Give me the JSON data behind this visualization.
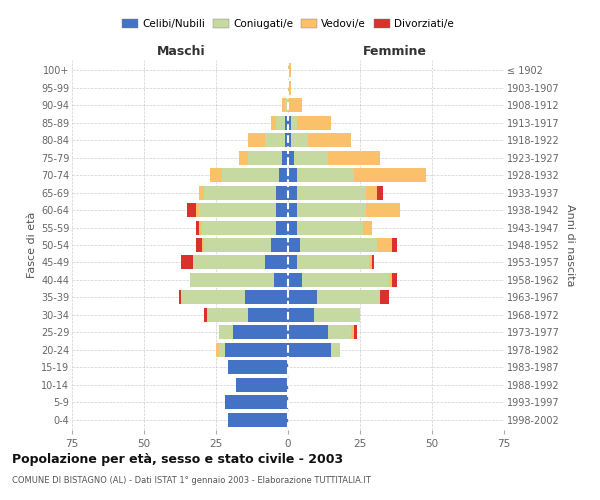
{
  "age_groups": [
    "0-4",
    "5-9",
    "10-14",
    "15-19",
    "20-24",
    "25-29",
    "30-34",
    "35-39",
    "40-44",
    "45-49",
    "50-54",
    "55-59",
    "60-64",
    "65-69",
    "70-74",
    "75-79",
    "80-84",
    "85-89",
    "90-94",
    "95-99",
    "100+"
  ],
  "birth_years": [
    "1998-2002",
    "1993-1997",
    "1988-1992",
    "1983-1987",
    "1978-1982",
    "1973-1977",
    "1968-1972",
    "1963-1967",
    "1958-1962",
    "1953-1957",
    "1948-1952",
    "1943-1947",
    "1938-1942",
    "1933-1937",
    "1928-1932",
    "1923-1927",
    "1918-1922",
    "1913-1917",
    "1908-1912",
    "1903-1907",
    "≤ 1902"
  ],
  "maschi": {
    "celibi": [
      21,
      22,
      18,
      21,
      22,
      19,
      14,
      15,
      5,
      8,
      6,
      4,
      4,
      4,
      3,
      2,
      1,
      1,
      0,
      0,
      0
    ],
    "coniugati": [
      0,
      0,
      0,
      0,
      2,
      5,
      14,
      22,
      29,
      25,
      23,
      26,
      27,
      25,
      20,
      12,
      7,
      3,
      1,
      0,
      0
    ],
    "vedovi": [
      0,
      0,
      0,
      0,
      1,
      0,
      0,
      0,
      0,
      0,
      1,
      1,
      1,
      2,
      4,
      3,
      6,
      2,
      1,
      0,
      0
    ],
    "divorziati": [
      0,
      0,
      0,
      0,
      0,
      0,
      1,
      1,
      0,
      4,
      2,
      1,
      3,
      0,
      0,
      0,
      0,
      0,
      0,
      0,
      0
    ]
  },
  "femmine": {
    "nubili": [
      0,
      0,
      0,
      0,
      15,
      14,
      9,
      10,
      5,
      3,
      4,
      3,
      3,
      3,
      3,
      2,
      1,
      1,
      0,
      0,
      0
    ],
    "coniugate": [
      0,
      0,
      0,
      0,
      3,
      8,
      16,
      22,
      30,
      25,
      27,
      23,
      24,
      24,
      20,
      12,
      6,
      2,
      0,
      0,
      0
    ],
    "vedove": [
      0,
      0,
      0,
      0,
      0,
      1,
      0,
      0,
      1,
      1,
      5,
      3,
      12,
      4,
      25,
      18,
      15,
      12,
      5,
      1,
      1
    ],
    "divorziate": [
      0,
      0,
      0,
      0,
      0,
      1,
      0,
      3,
      2,
      1,
      2,
      0,
      0,
      2,
      0,
      0,
      0,
      0,
      0,
      0,
      0
    ]
  },
  "colors": {
    "celibi": "#4472c4",
    "coniugati": "#c5d9a0",
    "vedovi": "#fac06a",
    "divorziati": "#d9312b"
  },
  "xlim": 75,
  "title": "Popolazione per età, sesso e stato civile - 2003",
  "subtitle": "COMUNE DI BISTAGNO (AL) - Dati ISTAT 1° gennaio 2003 - Elaborazione TUTTITALIA.IT",
  "ylabel": "Fasce di età",
  "ylabel_right": "Anni di nascita",
  "legend_labels": [
    "Celibi/Nubili",
    "Coniugati/e",
    "Vedovi/e",
    "Divorziati/e"
  ],
  "background_color": "#ffffff",
  "grid_color": "#bbbbbb"
}
